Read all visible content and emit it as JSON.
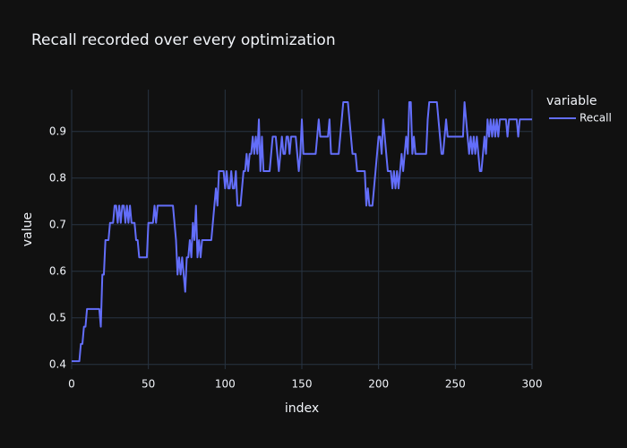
{
  "chart_data": {
    "type": "line",
    "title": "Recall recorded over every optimization",
    "x_label": "index",
    "y_label": "value",
    "legend_title": "variable",
    "legend_position": "right",
    "grid": true,
    "xlim": [
      0,
      300
    ],
    "xticks": [
      0,
      50,
      100,
      150,
      200,
      250,
      300
    ],
    "ylim": [
      0.39,
      0.99
    ],
    "yticks": [
      0.4,
      0.5,
      0.6,
      0.7,
      0.8,
      0.9
    ],
    "x": [
      0,
      1,
      2,
      3,
      4,
      5,
      6,
      7,
      8,
      9,
      10,
      11,
      12,
      13,
      14,
      15,
      16,
      17,
      18,
      19,
      20,
      21,
      22,
      23,
      24,
      25,
      26,
      27,
      28,
      29,
      30,
      31,
      32,
      33,
      34,
      35,
      36,
      37,
      38,
      39,
      40,
      41,
      42,
      43,
      44,
      45,
      46,
      47,
      48,
      49,
      50,
      51,
      52,
      53,
      54,
      55,
      56,
      57,
      58,
      59,
      60,
      61,
      62,
      63,
      64,
      65,
      66,
      67,
      68,
      69,
      70,
      71,
      72,
      73,
      74,
      75,
      76,
      77,
      78,
      79,
      80,
      81,
      82,
      83,
      84,
      85,
      86,
      87,
      88,
      89,
      90,
      91,
      92,
      93,
      94,
      95,
      96,
      97,
      98,
      99,
      100,
      101,
      102,
      103,
      104,
      105,
      106,
      107,
      108,
      109,
      110,
      111,
      112,
      113,
      114,
      115,
      116,
      117,
      118,
      119,
      120,
      121,
      122,
      123,
      124,
      125,
      126,
      127,
      128,
      129,
      130,
      131,
      132,
      133,
      134,
      135,
      136,
      137,
      138,
      139,
      140,
      141,
      142,
      143,
      144,
      145,
      146,
      147,
      148,
      149,
      150,
      151,
      152,
      153,
      154,
      155,
      156,
      157,
      158,
      159,
      160,
      161,
      162,
      163,
      164,
      165,
      166,
      167,
      168,
      169,
      170,
      171,
      172,
      173,
      174,
      175,
      176,
      177,
      178,
      179,
      180,
      181,
      182,
      183,
      184,
      185,
      186,
      187,
      188,
      189,
      190,
      191,
      192,
      193,
      194,
      195,
      196,
      197,
      198,
      199,
      200,
      201,
      202,
      203,
      204,
      205,
      206,
      207,
      208,
      209,
      210,
      211,
      212,
      213,
      214,
      215,
      216,
      217,
      218,
      219,
      220,
      221,
      222,
      223,
      224,
      225,
      226,
      227,
      228,
      229,
      230,
      231,
      232,
      233,
      234,
      235,
      236,
      237,
      238,
      239,
      240,
      241,
      242,
      243,
      244,
      245,
      246,
      247,
      248,
      249,
      250,
      251,
      252,
      253,
      254,
      255,
      256,
      257,
      258,
      259,
      260,
      261,
      262,
      263,
      264,
      265,
      266,
      267,
      268,
      269,
      270,
      271,
      272,
      273,
      274,
      275,
      276,
      277,
      278,
      279,
      280,
      281,
      282,
      283,
      284,
      285,
      286,
      287,
      288,
      289,
      290,
      291,
      292,
      293,
      294,
      295,
      296,
      297,
      298,
      299,
      300
    ],
    "series": [
      {
        "name": "Recall",
        "color": "#636efa",
        "values": [
          0.407,
          0.407,
          0.407,
          0.407,
          0.407,
          0.407,
          0.444,
          0.444,
          0.481,
          0.481,
          0.519,
          0.519,
          0.519,
          0.519,
          0.519,
          0.519,
          0.519,
          0.519,
          0.519,
          0.481,
          0.593,
          0.593,
          0.667,
          0.667,
          0.667,
          0.704,
          0.704,
          0.704,
          0.741,
          0.741,
          0.704,
          0.741,
          0.704,
          0.741,
          0.741,
          0.704,
          0.741,
          0.704,
          0.741,
          0.704,
          0.704,
          0.704,
          0.667,
          0.667,
          0.63,
          0.63,
          0.63,
          0.63,
          0.63,
          0.63,
          0.704,
          0.704,
          0.704,
          0.704,
          0.741,
          0.704,
          0.741,
          0.741,
          0.741,
          0.741,
          0.741,
          0.741,
          0.741,
          0.741,
          0.741,
          0.741,
          0.741,
          0.704,
          0.667,
          0.593,
          0.63,
          0.593,
          0.63,
          0.593,
          0.556,
          0.63,
          0.63,
          0.667,
          0.63,
          0.704,
          0.667,
          0.741,
          0.63,
          0.667,
          0.63,
          0.667,
          0.667,
          0.667,
          0.667,
          0.667,
          0.667,
          0.667,
          0.704,
          0.741,
          0.778,
          0.741,
          0.815,
          0.815,
          0.815,
          0.815,
          0.778,
          0.815,
          0.778,
          0.778,
          0.815,
          0.778,
          0.778,
          0.815,
          0.741,
          0.741,
          0.741,
          0.778,
          0.815,
          0.815,
          0.852,
          0.815,
          0.852,
          0.852,
          0.889,
          0.852,
          0.889,
          0.852,
          0.926,
          0.815,
          0.889,
          0.815,
          0.815,
          0.815,
          0.815,
          0.815,
          0.852,
          0.889,
          0.889,
          0.889,
          0.852,
          0.815,
          0.852,
          0.889,
          0.852,
          0.852,
          0.889,
          0.889,
          0.852,
          0.889,
          0.889,
          0.889,
          0.889,
          0.852,
          0.815,
          0.852,
          0.926,
          0.852,
          0.852,
          0.852,
          0.852,
          0.852,
          0.852,
          0.852,
          0.852,
          0.852,
          0.889,
          0.926,
          0.889,
          0.889,
          0.889,
          0.889,
          0.889,
          0.889,
          0.926,
          0.852,
          0.852,
          0.852,
          0.852,
          0.852,
          0.852,
          0.889,
          0.926,
          0.963,
          0.963,
          0.963,
          0.963,
          0.926,
          0.889,
          0.852,
          0.852,
          0.852,
          0.815,
          0.815,
          0.815,
          0.815,
          0.815,
          0.815,
          0.741,
          0.778,
          0.741,
          0.741,
          0.741,
          0.778,
          0.815,
          0.852,
          0.889,
          0.889,
          0.852,
          0.926,
          0.889,
          0.852,
          0.815,
          0.815,
          0.815,
          0.778,
          0.815,
          0.778,
          0.815,
          0.778,
          0.815,
          0.852,
          0.815,
          0.852,
          0.889,
          0.852,
          0.963,
          0.963,
          0.852,
          0.889,
          0.852,
          0.852,
          0.852,
          0.852,
          0.852,
          0.852,
          0.852,
          0.852,
          0.926,
          0.963,
          0.963,
          0.963,
          0.963,
          0.963,
          0.963,
          0.926,
          0.889,
          0.852,
          0.852,
          0.889,
          0.926,
          0.889,
          0.889,
          0.889,
          0.889,
          0.889,
          0.889,
          0.889,
          0.889,
          0.889,
          0.889,
          0.889,
          0.963,
          0.926,
          0.889,
          0.852,
          0.889,
          0.852,
          0.889,
          0.852,
          0.889,
          0.852,
          0.815,
          0.815,
          0.852,
          0.889,
          0.852,
          0.926,
          0.889,
          0.926,
          0.889,
          0.926,
          0.889,
          0.926,
          0.889,
          0.926,
          0.926,
          0.926,
          0.926,
          0.926,
          0.889,
          0.926,
          0.926,
          0.926,
          0.926,
          0.926,
          0.926,
          0.889,
          0.926,
          0.926,
          0.926,
          0.926,
          0.926,
          0.926,
          0.926,
          0.926,
          0.926
        ]
      }
    ]
  }
}
